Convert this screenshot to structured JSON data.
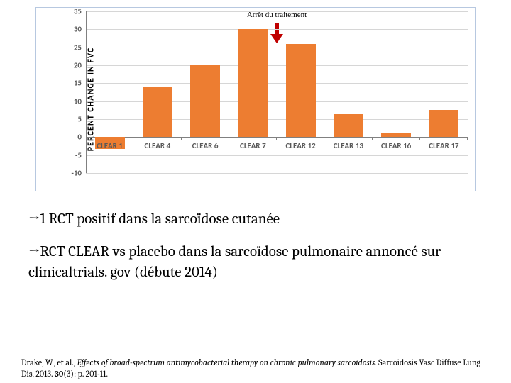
{
  "chart": {
    "type": "bar",
    "ylabel": "PERCENT CHANGE IN FVC",
    "annotation": "Arrêt du traitement",
    "categories": [
      "CLEAR 1",
      "CLEAR 4",
      "CLEAR 6",
      "CLEAR 7",
      "CLEAR 12",
      "CLEAR 13",
      "CLEAR 16",
      "CLEAR 17"
    ],
    "values": [
      -3.3,
      14.0,
      20.0,
      30.0,
      26.0,
      6.3,
      1.0,
      7.5
    ],
    "ylim": [
      -10,
      35
    ],
    "ytick_step": 5,
    "bar_color": "#ed7d31",
    "grid_color": "#d6d6d6",
    "axis_color": "#808080",
    "tick_color": "#595959",
    "arrow_fill": "#c00000",
    "label_fontsize": 11,
    "ylabel_fontsize": 12,
    "background": "#ffffff"
  },
  "text": {
    "bullet1_arrow": "→",
    "bullet1": "1 RCT positif dans la sarcoïdose cutanée",
    "bullet2_arrow": "→",
    "bullet2a": "RCT  CLEAR vs placebo dans la sarcoïdose pulmonaire annoncé sur",
    "bullet2_link": " clinicaltrials. gov ",
    "bullet2b": "(débute 2014)"
  },
  "citation": {
    "authors": "Drake, W., et al., ",
    "title": "Effects of broad-spectrum antimycobacterial therapy on chronic pulmonary sarcoidosis. ",
    "journal": "Sarcoidosis Vasc Diffuse Lung Dis, 2013. ",
    "vol": "30",
    "rest": "(3): p. 201-11."
  }
}
